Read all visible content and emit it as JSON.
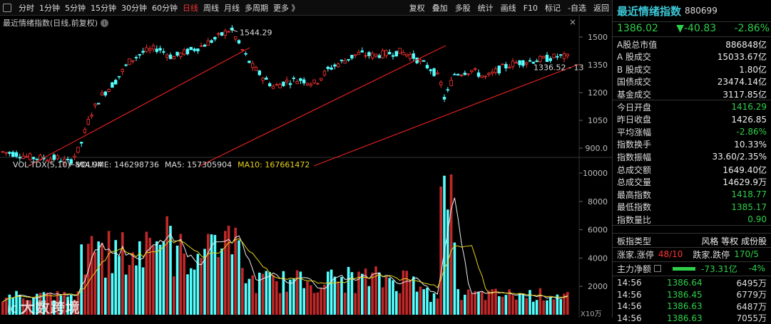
{
  "toolbar": {
    "left_items": [
      "分时",
      "1分钟",
      "5分钟",
      "15分钟",
      "30分钟",
      "60分钟",
      "日线",
      "周线",
      "月线",
      "多周期",
      "更多 》"
    ],
    "active_item": "日线",
    "right_items": [
      "复权",
      "叠加",
      "多股",
      "统计",
      "画线",
      "F10",
      "标记",
      "-自选",
      "返回"
    ]
  },
  "chart": {
    "title": "最近情绪指数(日线,前复权)",
    "info_badge": "i",
    "high_label": "1544.29",
    "low_label": "804.94",
    "last_label": "1336.52 - 13",
    "price_axis": [
      "1500",
      "1350",
      "1200",
      "1050",
      "900.0"
    ],
    "close_label": "×"
  },
  "volume": {
    "indicator": "VOL-TDX(5,10)",
    "volume": "VOLUME: 146298736",
    "ma5": "MA5: 157305904",
    "ma10": "MA10: 167661472",
    "axis": [
      "10000",
      "8000",
      "6000",
      "4000",
      "2000"
    ],
    "unit": "X10万"
  },
  "watermark": {
    "prefix": "iC",
    "text": "大数跨境"
  },
  "side": {
    "name": "最近情绪指数",
    "code": "880699",
    "price": "1386.02",
    "change": "▼-40.83",
    "pct": "-2.86%",
    "stats": [
      {
        "k": "A股总市值",
        "v": "886848亿",
        "c": "w"
      },
      {
        "k": "A 股成交",
        "v": "15033.67亿",
        "c": "w"
      },
      {
        "k": "B 股成交",
        "v": "1.80亿",
        "c": "w"
      },
      {
        "k": "国债成交",
        "v": "23474.14亿",
        "c": "w"
      },
      {
        "k": "基金成交",
        "v": "3117.85亿",
        "c": "w"
      },
      {
        "k": "今日开盘",
        "v": "1416.29",
        "c": "g"
      },
      {
        "k": "昨日收盘",
        "v": "1426.85",
        "c": "w"
      },
      {
        "k": "平均涨幅",
        "v": "-2.86%",
        "c": "g"
      },
      {
        "k": "指数换手",
        "v": "10.33%",
        "c": "w"
      },
      {
        "k": "指数振幅",
        "v": "33.60/2.35%",
        "c": "w"
      },
      {
        "k": "总成交额",
        "v": "1649.40亿",
        "c": "w"
      },
      {
        "k": "总成交量",
        "v": "14629.9万",
        "c": "w"
      },
      {
        "k": "最高指数",
        "v": "1418.77",
        "c": "g"
      },
      {
        "k": "最低指数",
        "v": "1385.17",
        "c": "g"
      },
      {
        "k": "指数量比",
        "v": "0.90",
        "c": "g"
      }
    ],
    "board_type_label": "板指类型",
    "board_type_value": "风格 等权 成份股",
    "zt_label": "涨家.涨停",
    "zt_value": "48/10",
    "dt_label": "跌家.跌停",
    "dt_value": "170/5",
    "main_flow_label": "主力净额",
    "main_flow_value": "-73.31亿",
    "main_flow_pct": "-4%",
    "ticks": [
      {
        "t": "14:56",
        "p": "1386.64",
        "v": "6495万"
      },
      {
        "t": "14:56",
        "p": "1386.45",
        "v": "6779万"
      },
      {
        "t": "14:56",
        "p": "1386.63",
        "v": "6487万"
      },
      {
        "t": "14:56",
        "p": "1386.63",
        "v": "7055万"
      }
    ]
  }
}
